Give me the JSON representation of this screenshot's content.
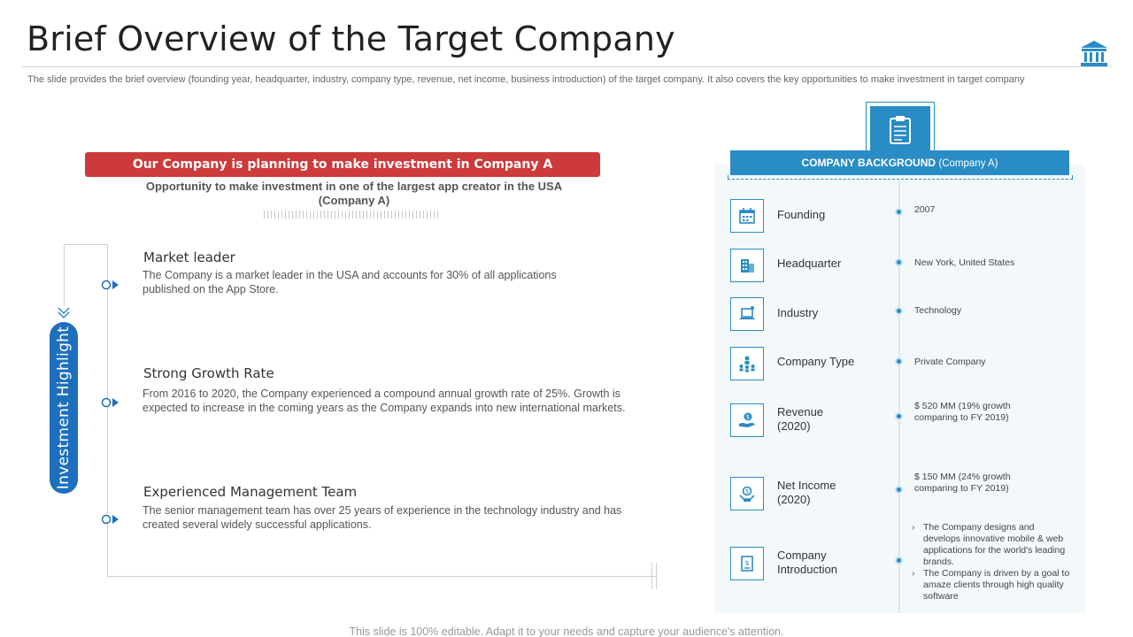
{
  "header": {
    "title": "Brief Overview of the Target Company",
    "description": "The slide provides the brief overview (founding year, headquarter, industry, company type,  revenue, net income, business introduction) of the target company. It also covers the key opportunities to make investment in target company",
    "icon": "bank-icon"
  },
  "investment": {
    "banner": "Our Company is planning to make investment in Company A",
    "opportunity": "Opportunity  to make investment  in one of the largest app creator in the USA (Company A)",
    "side_label": "Investment Highlight",
    "highlights": [
      {
        "title": "Market leader",
        "text": "The Company  is a market leader in the USA and accounts for 30% of all applications published on the App Store."
      },
      {
        "title": "Strong Growth Rate",
        "text": "From 2016 to 2020, the Company experienced a compound annual growth rate of 25%. Growth is expected to increase in the coming years as the Company expands into new international  markets."
      },
      {
        "title": "Experienced Management Team",
        "text": "The senior management team has over  25 years of experience  in the technology industry and has created several widely successful applications."
      }
    ]
  },
  "background": {
    "banner_main": "COMPANY BACKGROUND",
    "banner_sub": "(Company A)",
    "banner_icon": "clipboard-icon",
    "rows": [
      {
        "label": "Founding",
        "value": "2007",
        "icon": "calendar-icon"
      },
      {
        "label": "Headquarter",
        "value": "New York, United States",
        "icon": "building-icon"
      },
      {
        "label": "Industry",
        "value": "Technology",
        "icon": "laptop-icon"
      },
      {
        "label": "Company Type",
        "value": "Private Company",
        "icon": "org-chart-icon"
      },
      {
        "label": "Revenue (2020)",
        "value": "$ 520 MM (19% growth comparing to FY 2019)",
        "icon": "money-hand-icon"
      },
      {
        "label": "Net Income (2020)",
        "value": "$ 150 MM (24% growth comparing to FY 2019)",
        "icon": "income-icon"
      },
      {
        "label": "Company Introduction",
        "icon": "document-dollar-icon"
      }
    ],
    "intro_points": [
      "The Company designs and develops innovative mobile  & web applications for the world's leading brands.",
      "The Company is driven by a goal to amaze clients through high quality software"
    ]
  },
  "footer": "This slide is 100% editable. Adapt it to your needs and capture your audience's attention.",
  "colors": {
    "accent_blue": "#2a8cc4",
    "pill_blue": "#1d6fbd",
    "banner_red": "#cd3a3b"
  }
}
